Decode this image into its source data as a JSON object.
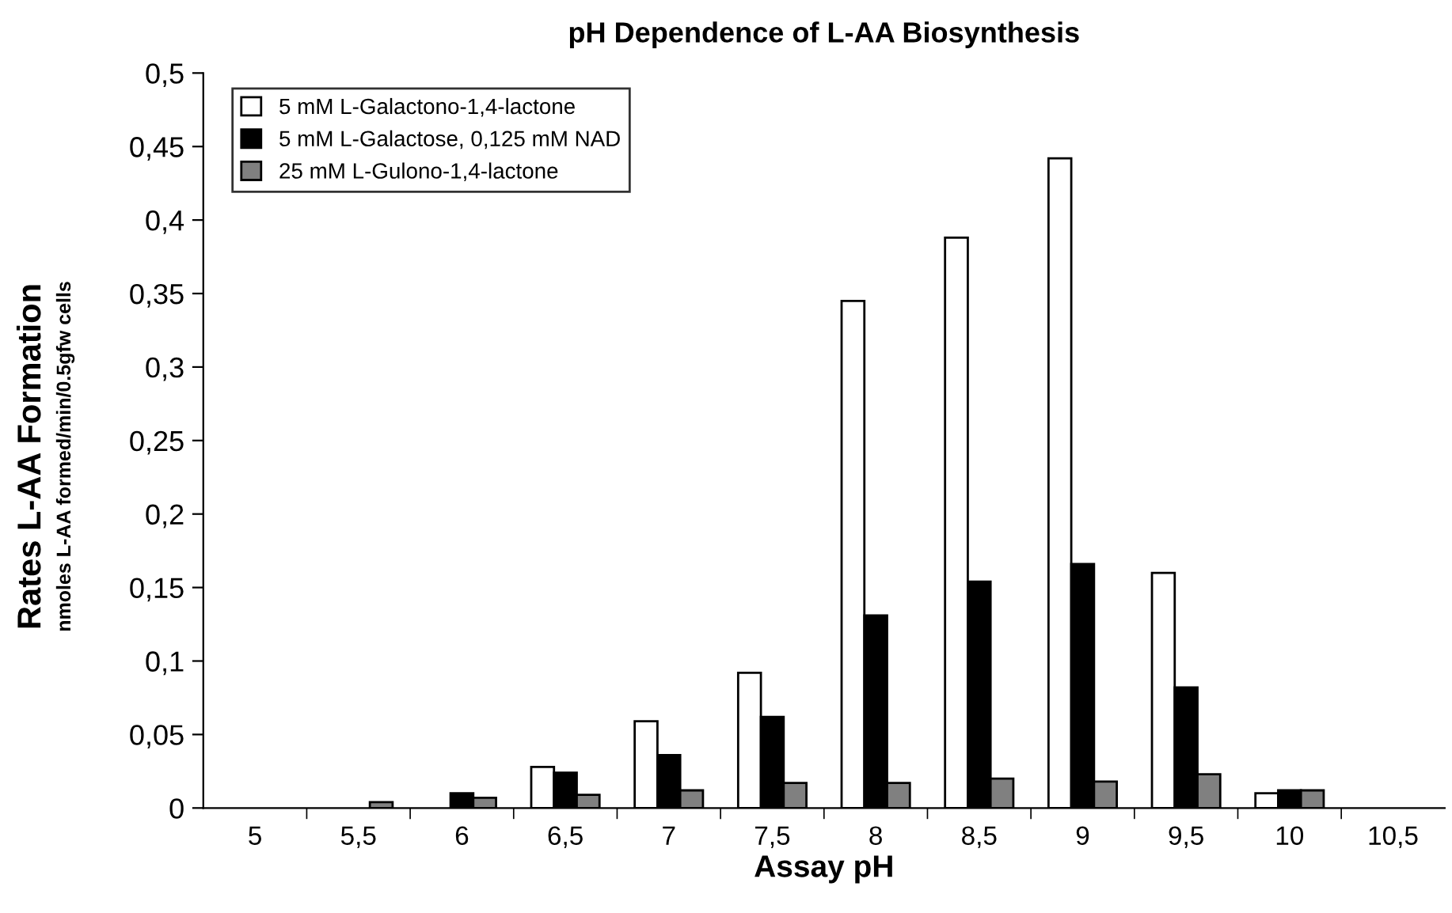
{
  "chart_data": {
    "type": "bar",
    "title": "pH Dependence of L-AA Biosynthesis",
    "xlabel": "Assay pH",
    "ylabel": "Rates L-AA Formation\nnmoles L-AA formed/min/0.5gfw cells",
    "categories": [
      "5",
      "5,5",
      "6",
      "6,5",
      "7",
      "7,5",
      "8",
      "8,5",
      "9",
      "9,5",
      "10",
      "10,5"
    ],
    "series": [
      {
        "name": "5 mM L-Galactono-1,4-lactone",
        "color": "#ffffff",
        "values": [
          null,
          null,
          null,
          0.028,
          0.059,
          0.092,
          0.345,
          0.388,
          0.442,
          0.16,
          0.01,
          null
        ]
      },
      {
        "name": "5 mM L-Galactose, 0,125 mM NAD",
        "color": "#000000",
        "values": [
          null,
          null,
          0.01,
          0.024,
          0.036,
          0.062,
          0.131,
          0.154,
          0.166,
          0.082,
          0.012,
          null
        ]
      },
      {
        "name": "25 mM L-Gulono-1,4-lactone",
        "color": "#808080",
        "values": [
          null,
          0.004,
          0.007,
          0.009,
          0.012,
          0.017,
          0.017,
          0.02,
          0.018,
          0.023,
          0.012,
          null
        ]
      }
    ],
    "ylim": [
      0,
      0.5
    ],
    "yticks": [
      {
        "value": 0,
        "label": "0"
      },
      {
        "value": 0.05,
        "label": "0,05"
      },
      {
        "value": 0.1,
        "label": "0,1"
      },
      {
        "value": 0.15,
        "label": "0,15"
      },
      {
        "value": 0.2,
        "label": "0,2"
      },
      {
        "value": 0.25,
        "label": "0,25"
      },
      {
        "value": 0.3,
        "label": "0,3"
      },
      {
        "value": 0.35,
        "label": "0,35"
      },
      {
        "value": 0.4,
        "label": "0,4"
      },
      {
        "value": 0.45,
        "label": "0,45"
      },
      {
        "value": 0.5,
        "label": "0,5"
      }
    ],
    "grid": false,
    "legend": "top left"
  }
}
